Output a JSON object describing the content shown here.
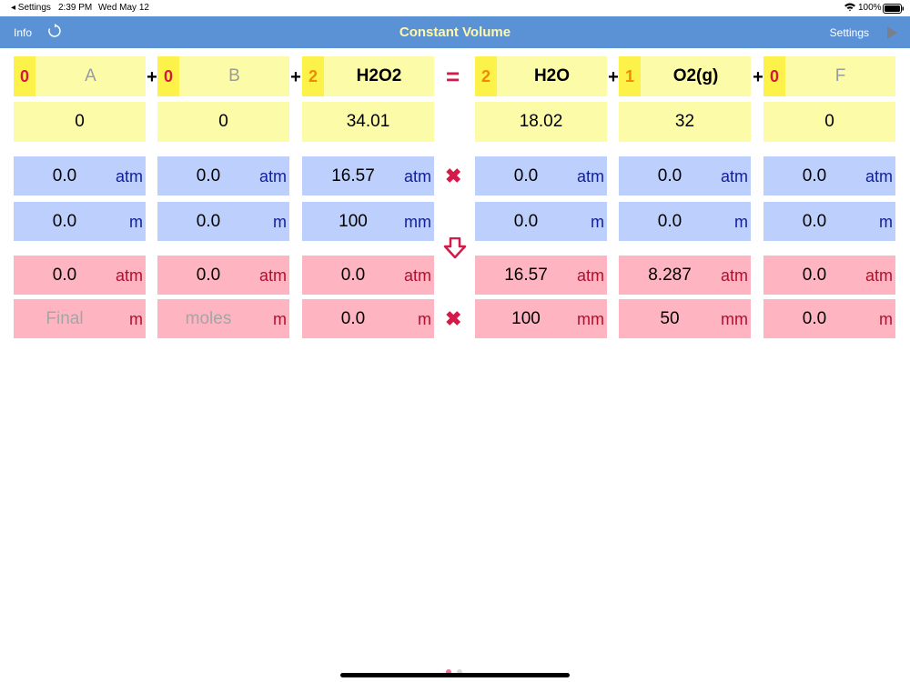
{
  "status": {
    "back": "◂ Settings",
    "time": "2:39 PM",
    "date": "Wed May 12",
    "battery": "100%"
  },
  "nav": {
    "info": "Info",
    "title": "Constant Volume",
    "settings": "Settings"
  },
  "ops": {
    "plus": "+",
    "equals": "=",
    "times": "✖"
  },
  "units": {
    "atm": "atm",
    "m": "m",
    "mm": "mm"
  },
  "species": [
    {
      "coef": "0",
      "name": "A",
      "mass": "0",
      "p1": "0.0",
      "u1": "atm",
      "n1": "0.0",
      "nu1": "m",
      "p2": "0.0",
      "u2": "atm",
      "n2": "Final",
      "nu2": "m"
    },
    {
      "coef": "0",
      "name": "B",
      "mass": "0",
      "p1": "0.0",
      "u1": "atm",
      "n1": "0.0",
      "nu1": "m",
      "p2": "0.0",
      "u2": "atm",
      "n2": "moles",
      "nu2": "m"
    },
    {
      "coef": "2",
      "name": "H2O2",
      "mass": "34.01",
      "p1": "16.57",
      "u1": "atm",
      "n1": "100",
      "nu1": "mm",
      "p2": "0.0",
      "u2": "atm",
      "n2": "0.0",
      "nu2": "m"
    },
    {
      "coef": "2",
      "name": "H2O",
      "mass": "18.02",
      "p1": "0.0",
      "u1": "atm",
      "n1": "0.0",
      "nu1": "m",
      "p2": "16.57",
      "u2": "atm",
      "n2": "100",
      "nu2": "mm"
    },
    {
      "coef": "1",
      "name": "O2(g)",
      "mass": "32",
      "p1": "0.0",
      "u1": "atm",
      "n1": "0.0",
      "nu1": "m",
      "p2": "8.287",
      "u2": "atm",
      "n2": "50",
      "nu2": "mm"
    },
    {
      "coef": "0",
      "name": "F",
      "mass": "0",
      "p1": "0.0",
      "u1": "atm",
      "n1": "0.0",
      "nu1": "m",
      "p2": "0.0",
      "u2": "atm",
      "n2": "0.0",
      "nu2": "m"
    }
  ],
  "colors": {
    "nav": "#5b92d6",
    "yellow": "#fcfba7",
    "blue": "#bdd0fd",
    "pink": "#feb5c1",
    "accent": "#d41a4a"
  },
  "page_indicator": {
    "pages": 2,
    "current": 1
  }
}
